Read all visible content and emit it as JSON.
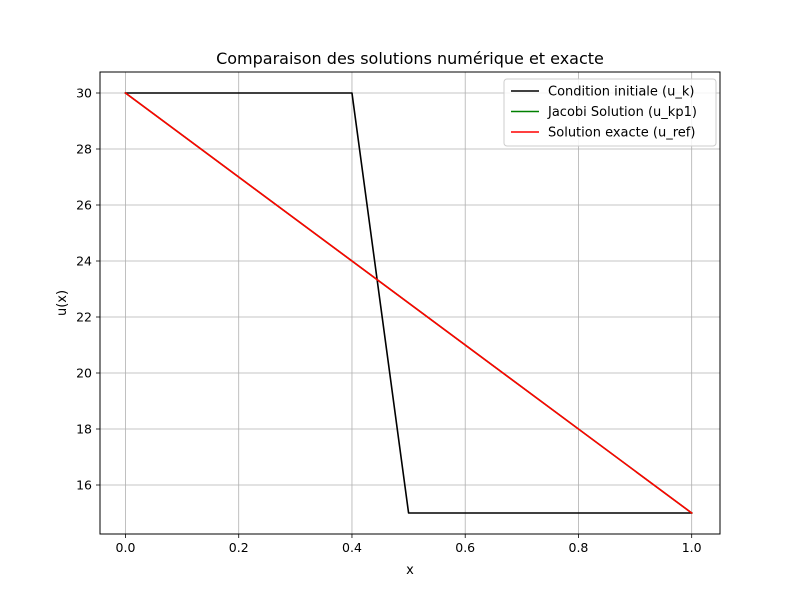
{
  "chart_data": {
    "type": "line",
    "title": "Comparaison des solutions numérique et exacte",
    "xlabel": "x",
    "ylabel": "u(x)",
    "xlim": [
      -0.045,
      1.05
    ],
    "ylim": [
      14.25,
      30.75
    ],
    "xticks": [
      0.0,
      0.2,
      0.4,
      0.6,
      0.8,
      1.0
    ],
    "xtick_labels": [
      "0.0",
      "0.2",
      "0.4",
      "0.6",
      "0.8",
      "1.0"
    ],
    "yticks": [
      16,
      18,
      20,
      22,
      24,
      26,
      28,
      30
    ],
    "ytick_labels": [
      "16",
      "18",
      "20",
      "22",
      "24",
      "26",
      "28",
      "30"
    ],
    "grid": true,
    "legend_position": "top-right",
    "series": [
      {
        "name": "Condition initiale (u_k)",
        "color": "#000000",
        "x": [
          0.0,
          0.4,
          0.5,
          1.0
        ],
        "y": [
          30,
          30,
          15,
          15
        ]
      },
      {
        "name": "Jacobi Solution (u_kp1)",
        "color": "#008000",
        "x": [
          0.0,
          1.0
        ],
        "y": [
          30,
          15
        ]
      },
      {
        "name": "Solution exacte (u_ref)",
        "color": "#ff0000",
        "x": [
          0.0,
          1.0
        ],
        "y": [
          30,
          15
        ]
      }
    ]
  }
}
